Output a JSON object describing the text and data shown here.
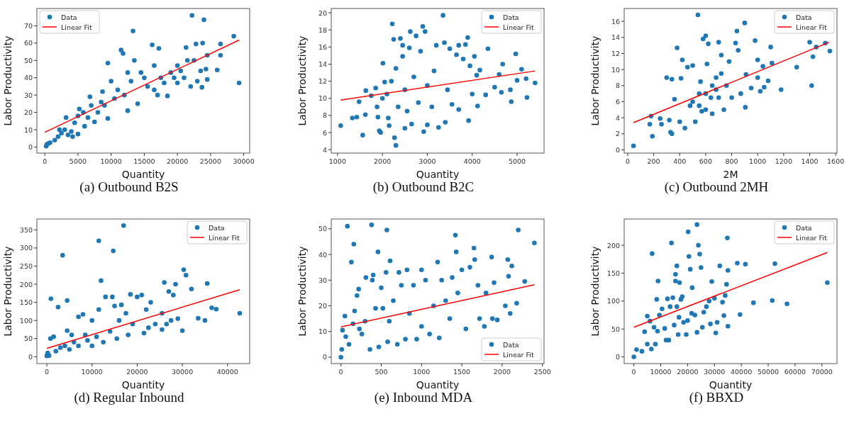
{
  "chart_data": [
    {
      "type": "scatter",
      "title": "(a) Outbound B2S",
      "xlabel": "Quantity",
      "ylabel": "Labor Productivity",
      "xlim": [
        -1200,
        30900
      ],
      "ylim": [
        -3.5,
        80
      ],
      "xticks": [
        0,
        5000,
        10000,
        15000,
        20000,
        25000,
        30000
      ],
      "yticks": [
        0,
        10,
        20,
        30,
        40,
        50,
        60,
        70
      ],
      "legend": "top left",
      "series": [
        {
          "name": "Data",
          "marker": "circle",
          "color": "#1f77b4",
          "x": [
            200,
            300,
            500,
            800,
            1500,
            2000,
            2200,
            2500,
            3000,
            3200,
            3500,
            4000,
            4200,
            4500,
            5000,
            5000,
            5200,
            5800,
            6000,
            6500,
            6800,
            7000,
            7500,
            8000,
            8500,
            8700,
            9000,
            9500,
            9500,
            10000,
            10500,
            11000,
            11500,
            11800,
            12000,
            12500,
            12500,
            13000,
            13300,
            13500,
            14000,
            14500,
            15000,
            15500,
            16200,
            16500,
            16500,
            17000,
            17200,
            17500,
            18000,
            18500,
            19000,
            19500,
            20000,
            20000,
            20500,
            21000,
            21300,
            21500,
            22000,
            22200,
            22500,
            22800,
            23000,
            23500,
            23700,
            23800,
            24000,
            24300,
            24500,
            24500,
            26000,
            26500,
            26500,
            28500,
            29300
          ],
          "values": [
            0.5,
            1.5,
            2,
            2.5,
            4,
            6,
            10,
            8,
            10,
            17,
            7,
            9,
            6,
            14,
            18,
            7.5,
            22,
            20,
            12,
            17,
            29,
            24,
            14.5,
            20,
            26,
            32,
            24,
            16.5,
            48.5,
            38,
            28,
            33,
            56,
            54,
            30,
            21,
            43,
            38,
            67,
            50,
            25,
            43,
            40,
            35,
            59,
            33,
            47,
            30,
            57,
            40,
            37,
            29.5,
            43,
            40,
            47,
            37,
            44,
            40,
            57.5,
            50,
            35,
            76,
            50,
            59.5,
            38,
            44,
            34.5,
            60,
            73.5,
            45,
            39,
            53,
            44.5,
            53,
            59.5,
            64,
            37
          ]
        },
        {
          "name": "Linear Fit",
          "type": "line",
          "color": "#ff0000",
          "marker": "none",
          "x": [
            0,
            29300
          ],
          "values": [
            8.5,
            61.8
          ]
        }
      ]
    },
    {
      "type": "scatter",
      "title": "(b) Outbound B2C",
      "xlabel": "Quantity",
      "ylabel": "Labor Productivity",
      "xlim": [
        860,
        5600
      ],
      "ylim": [
        3.6,
        20.5
      ],
      "xticks": [
        1000,
        2000,
        3000,
        4000,
        5000
      ],
      "yticks": [
        4,
        6,
        8,
        10,
        12,
        14,
        16,
        18,
        20
      ],
      "legend": "top right",
      "series": [
        {
          "name": "Data",
          "marker": "circle",
          "color": "#1f77b4",
          "x": [
            1070,
            1330,
            1430,
            1480,
            1560,
            1620,
            1630,
            1750,
            1850,
            1880,
            1900,
            1930,
            1960,
            2000,
            2010,
            2050,
            2100,
            2130,
            2150,
            2200,
            2220,
            2250,
            2270,
            2300,
            2300,
            2350,
            2400,
            2450,
            2450,
            2500,
            2500,
            2550,
            2600,
            2620,
            2650,
            2700,
            2750,
            2800,
            2850,
            2900,
            2920,
            2950,
            3000,
            3000,
            3100,
            3150,
            3200,
            3250,
            3350,
            3380,
            3400,
            3450,
            3500,
            3550,
            3650,
            3700,
            3700,
            3800,
            3850,
            3900,
            3920,
            3950,
            4000,
            4050,
            4100,
            4120,
            4170,
            4300,
            4350,
            4500,
            4600,
            4650,
            4680,
            4850,
            4870,
            4970,
            5000,
            5100,
            5200,
            5220,
            5400
          ],
          "values": [
            6.8,
            7.7,
            7.8,
            9.6,
            5.7,
            8.1,
            10.9,
            10.3,
            11.2,
            9,
            7.8,
            6.2,
            6,
            10,
            14.1,
            11.9,
            10.5,
            7.7,
            6.8,
            12,
            18.7,
            16.9,
            5.4,
            4.5,
            13.5,
            9,
            17,
            16.2,
            14.9,
            6.5,
            11,
            8.5,
            15.9,
            17.8,
            7,
            12.5,
            17.3,
            9.5,
            15.5,
            18.4,
            6.1,
            17.8,
            11.5,
            6.9,
            9,
            13.2,
            16.2,
            6.6,
            19.7,
            16.5,
            7.2,
            11,
            15.8,
            9.3,
            15.1,
            16.2,
            8.7,
            14.6,
            16.3,
            17.1,
            7.4,
            13.8,
            10.5,
            14.9,
            12.7,
            9.1,
            13.3,
            10.4,
            15.8,
            11.3,
            12.8,
            10.7,
            14,
            11,
            9.6,
            15.2,
            12.1,
            13.4,
            12.3,
            10.1,
            11.8
          ]
        },
        {
          "name": "Linear Fit",
          "type": "line",
          "color": "#ff0000",
          "marker": "none",
          "x": [
            1070,
            5400
          ],
          "values": [
            9.8,
            13.2
          ]
        }
      ]
    },
    {
      "type": "scatter",
      "title": "(c) Outbound 2MH",
      "xlabel": "2M",
      "ylabel": "Labor Productivity",
      "xlim": [
        -27,
        1610
      ],
      "ylim": [
        -0.4,
        17.6
      ],
      "xticks": [
        0,
        200,
        400,
        600,
        800,
        1000,
        1200,
        1400,
        1600
      ],
      "yticks": [
        0,
        2,
        4,
        6,
        8,
        10,
        12,
        14,
        16
      ],
      "legend": "top right",
      "series": [
        {
          "name": "Data",
          "marker": "circle",
          "color": "#1f77b4",
          "x": [
            45,
            170,
            180,
            190,
            250,
            260,
            300,
            320,
            330,
            340,
            340,
            360,
            380,
            400,
            410,
            420,
            440,
            460,
            480,
            500,
            520,
            540,
            550,
            570,
            580,
            600,
            610,
            620,
            640,
            650,
            680,
            700,
            720,
            740,
            760,
            780,
            800,
            830,
            840,
            850,
            870,
            900,
            905,
            910,
            950,
            980,
            1000,
            1000,
            1020,
            1040,
            1050,
            1080,
            1100,
            1110,
            1180,
            1300,
            1400,
            1415,
            1425,
            1450,
            1520,
            1555,
            500,
            550,
            600,
            650,
            700,
            600,
            680,
            720,
            560
          ],
          "values": [
            0.5,
            3.2,
            4.2,
            1.7,
            3.9,
            3.2,
            9,
            3.7,
            2.2,
            2,
            8.8,
            6.3,
            12.7,
            3.5,
            8.9,
            11.2,
            2.7,
            10.3,
            5.5,
            10.5,
            3.5,
            16.8,
            7,
            4.8,
            13.8,
            14.2,
            10.7,
            13.2,
            6.5,
            4.5,
            9,
            13.4,
            11.8,
            5,
            8,
            11,
            6.5,
            13.3,
            14.8,
            12.4,
            7,
            15.8,
            5.3,
            9.4,
            7.7,
            13.6,
            9,
            11.2,
            7.3,
            10.4,
            7.8,
            8.6,
            12.8,
            10.8,
            7.5,
            10.3,
            13.4,
            8,
            11.6,
            12.8,
            13.3,
            12.3,
            6,
            5.5,
            7,
            8,
            6.5,
            5,
            7.5,
            9.5,
            8.5
          ]
        },
        {
          "name": "Linear Fit",
          "type": "line",
          "color": "#ff0000",
          "marker": "none",
          "x": [
            45,
            1550
          ],
          "values": [
            3.4,
            13.4
          ]
        }
      ]
    },
    {
      "type": "scatter",
      "title": "(d) Regular Inbound",
      "xlabel": "Quantity",
      "ylabel": "Labor Productivity",
      "xlim": [
        -2200,
        44900
      ],
      "ylim": [
        -19,
        380
      ],
      "xticks": [
        0,
        10000,
        20000,
        30000,
        40000
      ],
      "yticks": [
        0,
        50,
        100,
        150,
        200,
        250,
        300,
        350
      ],
      "legend": "top right",
      "series": [
        {
          "name": "Data",
          "marker": "circle",
          "color": "#1f77b4",
          "x": [
            0,
            100,
            200,
            500,
            800,
            900,
            1500,
            2000,
            2500,
            3000,
            3500,
            4000,
            4500,
            4500,
            5000,
            5500,
            6000,
            7000,
            7000,
            8000,
            8500,
            9000,
            10000,
            10000,
            11000,
            11500,
            11500,
            12000,
            12500,
            13000,
            14000,
            14500,
            14700,
            15000,
            15500,
            16000,
            16500,
            17000,
            17500,
            18000,
            18500,
            19000,
            20000,
            21000,
            21500,
            22000,
            22500,
            23000,
            24000,
            25500,
            25500,
            26000,
            26500,
            27000,
            27500,
            28000,
            28500,
            29000,
            30000,
            30300,
            30800,
            32000,
            33500,
            35000,
            35500,
            36500,
            37500,
            42700
          ],
          "values": [
            2,
            5,
            10,
            3,
            50,
            160,
            55,
            15,
            137,
            25,
            280,
            30,
            155,
            72,
            20,
            60,
            40,
            110,
            30,
            117,
            60,
            45,
            100,
            30,
            55,
            320,
            130,
            210,
            40,
            165,
            70,
            165,
            292,
            140,
            50,
            100,
            143,
            362,
            120,
            60,
            172,
            90,
            165,
            170,
            65,
            130,
            80,
            150,
            90,
            75,
            120,
            205,
            90,
            180,
            100,
            170,
            200,
            105,
            72,
            240,
            225,
            187,
            106,
            100,
            202,
            135,
            131,
            120
          ]
        },
        {
          "name": "Linear Fit",
          "type": "line",
          "color": "#ff0000",
          "marker": "none",
          "x": [
            0,
            42700
          ],
          "values": [
            23,
            185
          ]
        }
      ]
    },
    {
      "type": "scatter",
      "title": "(e) Inbound MDA",
      "xlabel": "Quantity",
      "ylabel": "Labor Productivity",
      "xlim": [
        -120,
        2520
      ],
      "ylim": [
        -2.5,
        53.8
      ],
      "xticks": [
        0,
        500,
        1000,
        1500,
        2000,
        2500
      ],
      "yticks": [
        0,
        10,
        20,
        30,
        40,
        50
      ],
      "legend": "bottom right",
      "series": [
        {
          "name": "Data",
          "marker": "circle",
          "color": "#1f77b4",
          "x": [
            0,
            10,
            20,
            50,
            60,
            80,
            100,
            130,
            150,
            160,
            170,
            200,
            220,
            230,
            260,
            300,
            310,
            360,
            380,
            390,
            400,
            430,
            460,
            470,
            500,
            520,
            560,
            570,
            580,
            600,
            610,
            650,
            700,
            720,
            750,
            800,
            820,
            850,
            900,
            940,
            1000,
            1000,
            1050,
            1100,
            1150,
            1200,
            1220,
            1250,
            1300,
            1350,
            1380,
            1420,
            1430,
            1450,
            1500,
            1550,
            1600,
            1650,
            1660,
            1700,
            1720,
            1780,
            1800,
            1870,
            1880,
            1900,
            1940,
            2040,
            2070,
            2080,
            2100,
            2120,
            2180,
            2200,
            2280,
            2400
          ],
          "values": [
            0,
            3,
            10.5,
            16,
            8,
            51,
            5,
            37,
            13,
            44,
            18,
            24,
            26.5,
            11,
            9,
            14,
            31,
            3,
            51.5,
            30,
            32,
            19,
            41,
            4,
            27,
            19,
            33,
            49.5,
            6,
            14,
            37.5,
            22,
            5,
            33,
            28,
            7,
            34,
            17,
            28,
            7,
            34,
            12,
            30,
            9,
            20,
            37,
            7.5,
            30,
            22,
            15,
            31,
            47.5,
            41,
            25,
            34,
            11,
            35,
            42.5,
            38,
            28,
            15,
            12,
            25,
            39,
            15,
            29,
            14.5,
            20,
            38,
            31.5,
            17,
            35.5,
            21,
            49.5,
            29.5,
            44.5
          ]
        },
        {
          "name": "Linear Fit",
          "type": "line",
          "color": "#ff0000",
          "marker": "none",
          "x": [
            0,
            2400
          ],
          "values": [
            11.8,
            28.2
          ]
        }
      ]
    },
    {
      "type": "scatter",
      "title": "(f) BBXD",
      "xlabel": "Quantity",
      "ylabel": "Labor Productivity",
      "xlim": [
        -3600,
        75600
      ],
      "ylim": [
        -12,
        247
      ],
      "xticks": [
        0,
        10000,
        20000,
        30000,
        40000,
        50000,
        60000,
        70000
      ],
      "yticks": [
        0,
        50,
        100,
        150,
        200
      ],
      "legend": "top right",
      "series": [
        {
          "name": "Data",
          "marker": "circle",
          "color": "#1f77b4",
          "x": [
            0,
            1000,
            3000,
            4000,
            5000,
            5000,
            6000,
            6500,
            6800,
            7500,
            8000,
            8500,
            8800,
            9000,
            9500,
            10500,
            11500,
            12000,
            12500,
            13000,
            13500,
            14000,
            14500,
            15000,
            15500,
            15500,
            16000,
            16000,
            16500,
            16800,
            17000,
            17500,
            18000,
            18500,
            19500,
            20000,
            20200,
            20500,
            21000,
            21500,
            21700,
            22700,
            23500,
            23500,
            24000,
            24500,
            25000,
            25500,
            26000,
            27000,
            28000,
            28500,
            29000,
            30000,
            30500,
            31000,
            32000,
            33000,
            33500,
            34000,
            34500,
            35000,
            35000,
            34800,
            38500,
            39500,
            41500,
            44500,
            51500,
            52500,
            57000,
            72000
          ],
          "values": [
            0,
            13,
            10,
            45,
            23,
            73,
            64,
            14,
            185,
            53,
            23,
            103,
            46,
            136,
            75,
            86,
            51,
            30,
            104,
            30,
            90,
            204,
            106,
            57,
            148,
            136,
            163,
            90,
            40,
            71,
            133,
            103,
            108,
            62,
            40,
            65,
            224,
            180,
            157,
            78,
            124,
            75,
            237,
            44,
            200,
            184,
            160,
            53,
            80,
            90,
            100,
            59,
            135,
            105,
            43,
            62,
            163,
            98,
            74,
            110,
            130,
            155,
            55,
            213,
            168,
            76,
            166,
            97,
            101,
            167,
            95,
            133
          ]
        },
        {
          "name": "Linear Fit",
          "type": "line",
          "color": "#ff0000",
          "marker": "none",
          "x": [
            0,
            72000
          ],
          "values": [
            53,
            187
          ]
        }
      ]
    }
  ]
}
